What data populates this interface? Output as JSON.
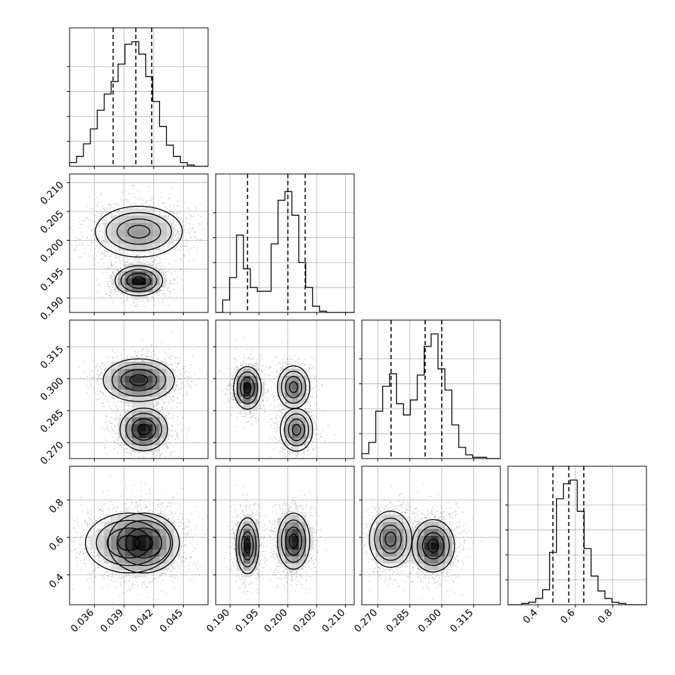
{
  "chart_data": {
    "type": "corner",
    "title": "",
    "parameters": [
      "",
      "",
      "",
      ""
    ],
    "grid": true,
    "quantile_lines": "dashed",
    "axes": [
      {
        "range": [
          0.0335,
          0.0475
        ],
        "ticks": [
          "0.036",
          "0.039",
          "0.042",
          "0.045"
        ],
        "tick_values": [
          0.036,
          0.039,
          0.042,
          0.045
        ]
      },
      {
        "range": [
          0.1875,
          0.2115
        ],
        "ticks": [
          "0.190",
          "0.195",
          "0.200",
          "0.205",
          "0.210"
        ],
        "tick_values": [
          0.19,
          0.195,
          0.2,
          0.205,
          0.21
        ]
      },
      {
        "range": [
          0.2625,
          0.3275
        ],
        "ticks": [
          "0.270",
          "0.285",
          "0.300",
          "0.315"
        ],
        "tick_values": [
          0.27,
          0.285,
          0.3,
          0.315
        ]
      },
      {
        "range": [
          0.24,
          0.98
        ],
        "ticks": [
          "0.4",
          "0.6",
          "0.8"
        ],
        "tick_values": [
          0.4,
          0.6,
          0.8
        ]
      }
    ],
    "quantiles": [
      [
        0.0379,
        0.0402,
        0.0418
      ],
      [
        0.193,
        0.2,
        0.203
      ],
      [
        0.2762,
        0.2922,
        0.3
      ],
      [
        0.48,
        0.565,
        0.645
      ]
    ],
    "histograms": [
      {
        "counts": [
          0.03,
          0.08,
          0.18,
          0.3,
          0.45,
          0.58,
          0.68,
          0.82,
          0.98,
          1.0,
          0.9,
          0.72,
          0.52,
          0.32,
          0.17,
          0.08,
          0.03,
          0.01,
          0.0,
          0.0
        ]
      },
      {
        "counts": [
          0.0,
          0.1,
          0.28,
          0.62,
          0.35,
          0.2,
          0.17,
          0.17,
          0.55,
          0.9,
          0.97,
          0.78,
          0.4,
          0.2,
          0.05,
          0.01,
          0.0,
          0.0,
          0.0,
          0.0
        ]
      },
      {
        "counts": [
          0.04,
          0.13,
          0.38,
          0.58,
          0.68,
          0.44,
          0.35,
          0.47,
          0.67,
          0.9,
          1.0,
          0.72,
          0.55,
          0.27,
          0.09,
          0.03,
          0.01,
          0.01,
          0.0,
          0.0
        ]
      },
      {
        "counts": [
          0.0,
          0.0,
          0.01,
          0.02,
          0.05,
          0.12,
          0.42,
          0.85,
          0.97,
          1.0,
          0.75,
          0.45,
          0.23,
          0.11,
          0.05,
          0.02,
          0.01,
          0.0,
          0.0,
          0.0
        ]
      }
    ],
    "modes": [
      [
        {
          "weight": 0.57,
          "mean": [
            0.0405,
            0.2015
          ],
          "sd": [
            0.0022,
            0.0022
          ],
          "rho": 0.0
        },
        {
          "weight": 0.43,
          "mean": [
            0.0405,
            0.193
          ],
          "sd": [
            0.0012,
            0.0013
          ],
          "rho": 0.2
        },
        {
          "weight": 0.57,
          "mean": [
            0.0405,
            0.2993
          ],
          "sd": [
            0.0018,
            0.005
          ],
          "rho": -0.1
        },
        {
          "weight": 0.43,
          "mean": [
            0.041,
            0.2762
          ],
          "sd": [
            0.0012,
            0.005
          ],
          "rho": 0.1
        },
        {
          "weight": 0.43,
          "mean": [
            0.0395,
            0.57
          ],
          "sd": [
            0.0022,
            0.08
          ],
          "rho": 0.1
        },
        {
          "weight": 0.57,
          "mean": [
            0.041,
            0.57
          ],
          "sd": [
            0.0018,
            0.08
          ],
          "rho": 0.0
        }
      ],
      [
        {
          "weight": 0.4,
          "mean": [
            0.193,
            0.2957
          ],
          "sd": [
            0.0012,
            0.005
          ],
          "rho": 0.0
        },
        {
          "weight": 0.3,
          "mean": [
            0.201,
            0.296
          ],
          "sd": [
            0.0014,
            0.005
          ],
          "rho": 0.0
        },
        {
          "weight": 0.3,
          "mean": [
            0.2015,
            0.276
          ],
          "sd": [
            0.0014,
            0.005
          ],
          "rho": 0.0
        },
        {
          "weight": 0.42,
          "mean": [
            0.193,
            0.555
          ],
          "sd": [
            0.001,
            0.075
          ],
          "rho": 0.0
        },
        {
          "weight": 0.58,
          "mean": [
            0.201,
            0.58
          ],
          "sd": [
            0.0014,
            0.075
          ],
          "rho": 0.0
        }
      ],
      [
        {
          "weight": 0.42,
          "mean": [
            0.276,
            0.59
          ],
          "sd": [
            0.005,
            0.075
          ],
          "rho": 0.0
        },
        {
          "weight": 0.58,
          "mean": [
            0.296,
            0.555
          ],
          "sd": [
            0.005,
            0.07
          ],
          "rho": 0.0
        }
      ]
    ]
  }
}
